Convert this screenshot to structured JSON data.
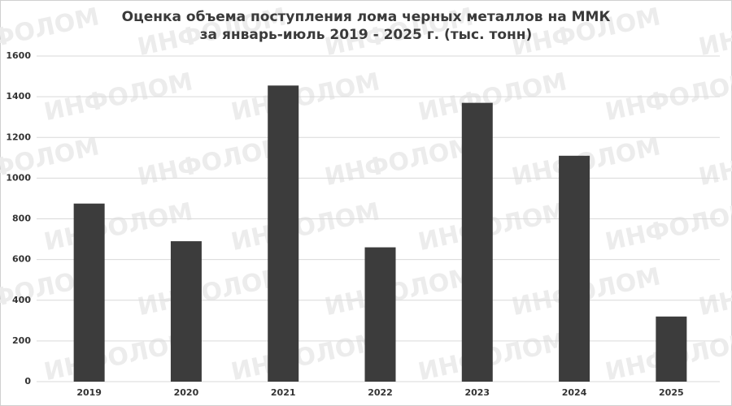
{
  "chart_data": {
    "type": "bar",
    "title": [
      "Оценка объема поступления лома черных металлов на ММК",
      "за январь-июль 2019 - 2025 г. (тыс. тонн)"
    ],
    "watermark": "ИНФОЛОМ",
    "categories": [
      "2019",
      "2020",
      "2021",
      "2022",
      "2023",
      "2024",
      "2025"
    ],
    "values": [
      875,
      690,
      1455,
      660,
      1370,
      1110,
      320
    ],
    "color": "#3c3c3c",
    "ylim": [
      0,
      1600
    ],
    "yticks": [
      0,
      200,
      400,
      600,
      800,
      1000,
      1200,
      1400,
      1600
    ],
    "grid": true
  }
}
